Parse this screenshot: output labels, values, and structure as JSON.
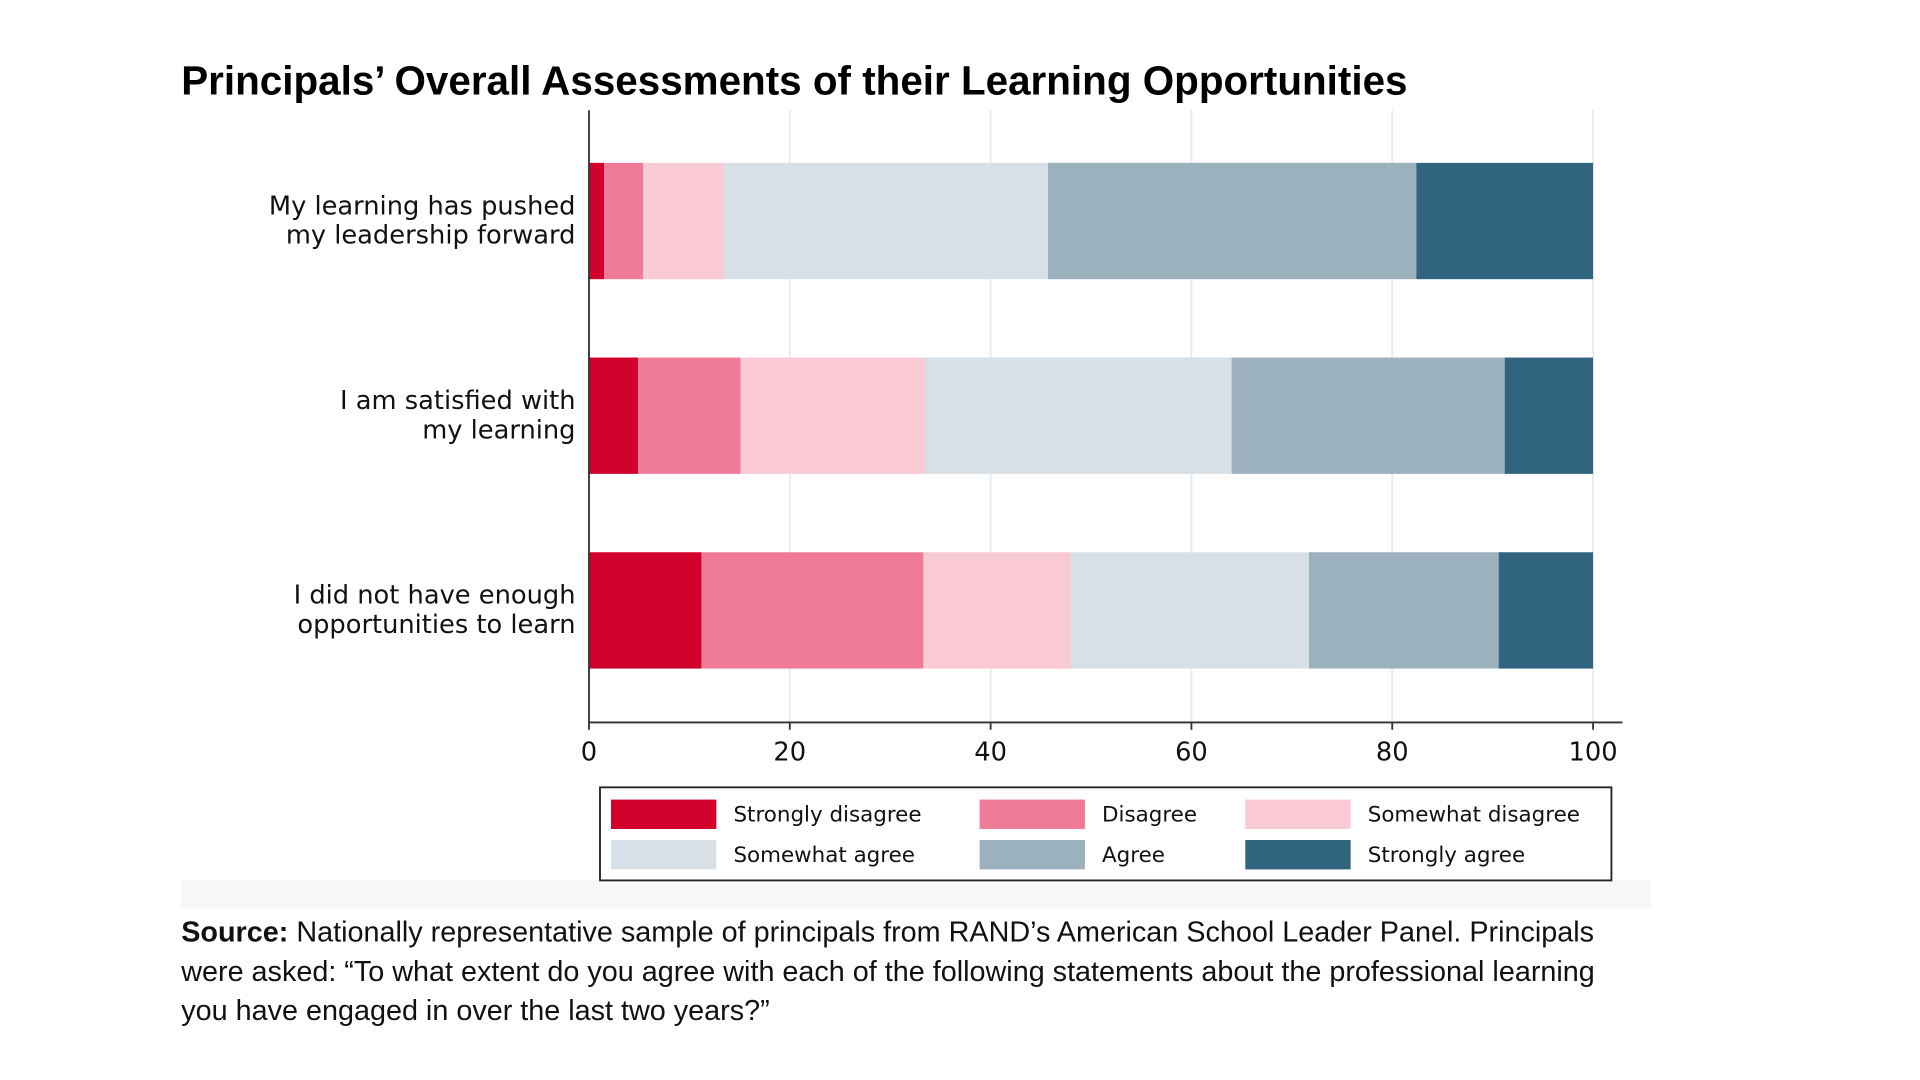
{
  "chart_data": {
    "type": "bar",
    "orientation": "horizontal",
    "stacked": true,
    "title": "Principals’ Overall Assessments of their Learning Opportunities",
    "categories": [
      [
        "My learning has pushed",
        "my leadership forward"
      ],
      [
        "I am satisfied with",
        "my learning"
      ],
      [
        "I did not have enough",
        "opportunities to learn"
      ]
    ],
    "xlim": [
      0,
      100
    ],
    "xticks": [
      "0",
      "20",
      "40",
      "60",
      "80",
      "100"
    ],
    "grid": true,
    "legend_position": "bottom",
    "series": [
      {
        "name": "Strongly disagree",
        "color": "#d0022c",
        "values": [
          1.5,
          4.9,
          11.2
        ]
      },
      {
        "name": "Disagree",
        "color": "#ef7b99",
        "values": [
          3.9,
          10.2,
          22.1
        ]
      },
      {
        "name": "Somewhat disagree",
        "color": "#f9c9d4",
        "values": [
          8.0,
          18.4,
          14.7
        ]
      },
      {
        "name": "Somewhat agree",
        "color": "#d7e0e7",
        "values": [
          32.3,
          30.5,
          23.7
        ]
      },
      {
        "name": "Agree",
        "color": "#9bb1bd",
        "values": [
          36.7,
          27.2,
          18.9
        ]
      },
      {
        "name": "Strongly agree",
        "color": "#31647f",
        "values": [
          17.6,
          8.8,
          9.4
        ]
      }
    ]
  },
  "source": {
    "label": "Source:",
    "lines": [
      " Nationally representative sample of principals from RAND’s American School Leader Panel. Principals",
      "were asked: “To what extent do you agree with each of the following statements about the professional learning",
      "you have engaged in over the last two years?”"
    ]
  }
}
